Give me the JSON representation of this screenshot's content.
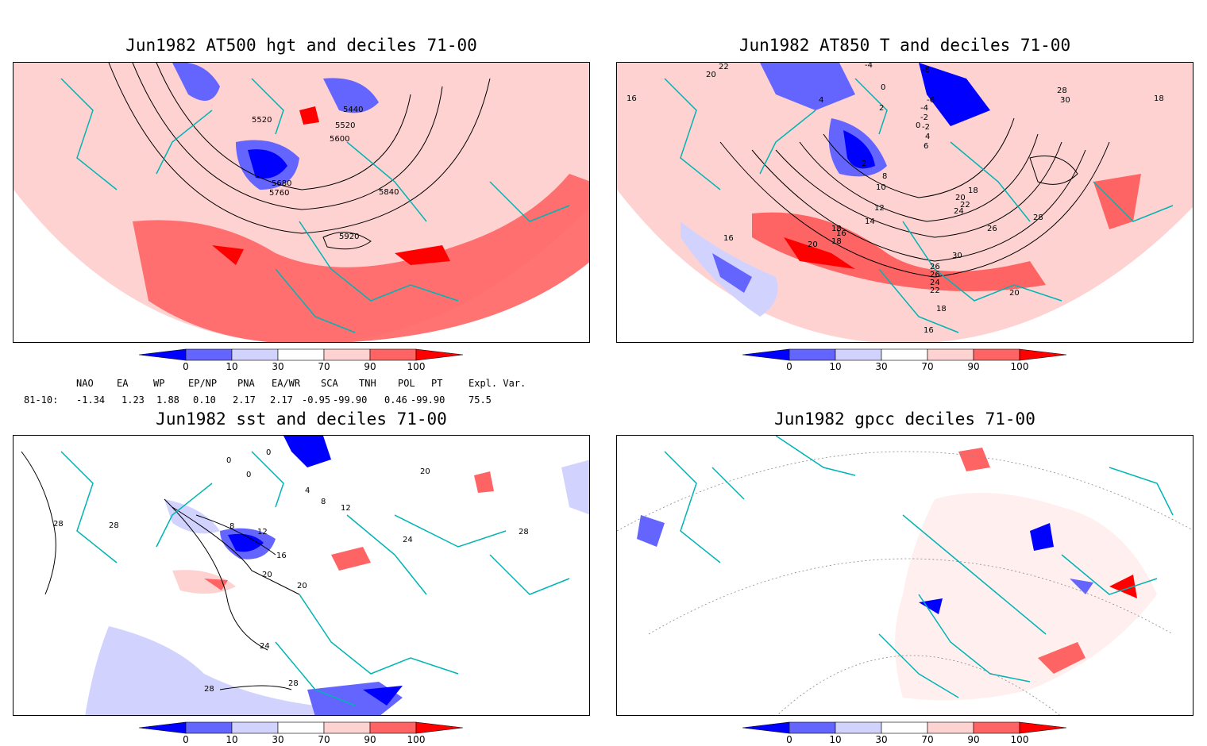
{
  "panels": [
    {
      "id": "p1",
      "title": "Jun1982 AT500 hgt and deciles 71-00",
      "contour_labels": [
        "5440",
        "5520",
        "5520",
        "5600",
        "5680",
        "5760",
        "5840",
        "5920"
      ]
    },
    {
      "id": "p2",
      "title": "Jun1982 AT850 T and deciles 71-00",
      "contour_labels": [
        "22",
        "20",
        "16",
        "-4",
        "-8",
        "4",
        "0",
        "2",
        "-6",
        "-4",
        "-2",
        "0",
        "4",
        "6",
        "8",
        "10",
        "12",
        "14",
        "16",
        "18",
        "20",
        "22",
        "24",
        "26",
        "28",
        "30",
        "18",
        "18",
        "16",
        "20",
        "26",
        "26",
        "24",
        "22",
        "20",
        "18",
        "16",
        "28",
        "30",
        "-2",
        "18",
        "2"
      ]
    },
    {
      "id": "p3",
      "title": "Jun1982 sst and deciles 71-00",
      "contour_labels": [
        "0",
        "0",
        "0",
        "8",
        "12",
        "16",
        "20",
        "20",
        "24",
        "24",
        "28",
        "28",
        "28",
        "28",
        "4",
        "8",
        "12",
        "20",
        "28"
      ]
    },
    {
      "id": "p4",
      "title": "Jun1982 gpcc deciles 71-00",
      "contour_labels": []
    }
  ],
  "colorbar": {
    "ticks": [
      "0",
      "10",
      "30",
      "70",
      "90",
      "100"
    ],
    "colors": [
      "#0000ff",
      "#6464ff",
      "#d2d2ff",
      "#ffffff",
      "#ffd2d2",
      "#ff6464",
      "#ff0000"
    ]
  },
  "indices": {
    "header": [
      "NAO",
      "EA",
      "WP",
      "EP/NP",
      "PNA",
      "EA/WR",
      "SCA",
      "TNH",
      "POL",
      "PT",
      "Expl. Var."
    ],
    "row_label": "81-10:",
    "values": [
      "-1.34",
      "1.23",
      "1.88",
      "0.10",
      "2.17",
      "2.17",
      "-0.95",
      "-99.90",
      "0.46",
      "-99.90",
      "75.5"
    ]
  },
  "colors": {
    "land_border": "#00b4b4",
    "contour": "#000000",
    "deep_red": "#ff0000",
    "mid_red": "#ff6464",
    "light_red": "#ffd2d2",
    "light_blue": "#d2d2ff",
    "mid_blue": "#6464ff",
    "deep_blue": "#0000ff"
  }
}
